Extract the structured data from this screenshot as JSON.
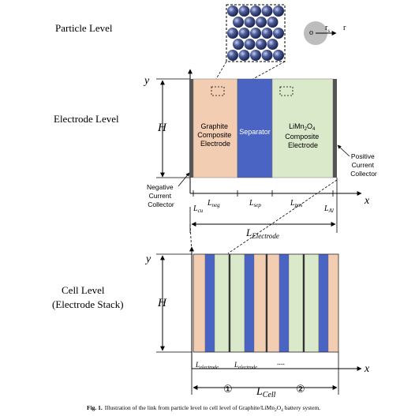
{
  "levels": {
    "particle": "Particle Level",
    "electrode": "Electrode Level",
    "cell_line1": "Cell Level",
    "cell_line2": "(Electrode Stack)"
  },
  "axes": {
    "y": "y",
    "x": "x",
    "h": "H"
  },
  "particle_labels": {
    "o": "o",
    "rs": "r",
    "rs_sub": "s",
    "r": "r"
  },
  "regions": {
    "graphite": [
      "Graphite",
      "Composite",
      "Electrode"
    ],
    "separator": "Separator",
    "cathode": [
      "LiMn",
      "2",
      "O",
      "4",
      "Composite",
      "Electrode"
    ]
  },
  "collectors": {
    "negative": [
      "Negative",
      "Current",
      "Collector"
    ],
    "positive": [
      "Positive",
      "Current",
      "Collector"
    ]
  },
  "lengths": {
    "cu": [
      "L",
      "cu"
    ],
    "neg": [
      "L",
      "neg"
    ],
    "sep": [
      "L",
      "sep"
    ],
    "pos": [
      "L",
      "pos"
    ],
    "al": [
      "L",
      "Al"
    ],
    "electrode": [
      "L",
      "Electrode"
    ],
    "electrode_a": [
      "L",
      "electrode"
    ],
    "electrode_b": [
      "L",
      "electrode"
    ],
    "dots": "....",
    "cell": [
      "L",
      "Cell"
    ]
  },
  "markers": [
    "①",
    "②"
  ],
  "caption": {
    "prefix": "Fig. 1.",
    "text": "Illustration of the link from particle level to cell level of Graphite/LiMn",
    "sub1": "2",
    "mid": "O",
    "sub2": "4",
    "end": " battery system."
  },
  "colors": {
    "graphite": "#f2cdb2",
    "separator": "#4a64c4",
    "cathode": "#dbe9cb",
    "collector": "#555555",
    "particle": "#3b4a80"
  }
}
